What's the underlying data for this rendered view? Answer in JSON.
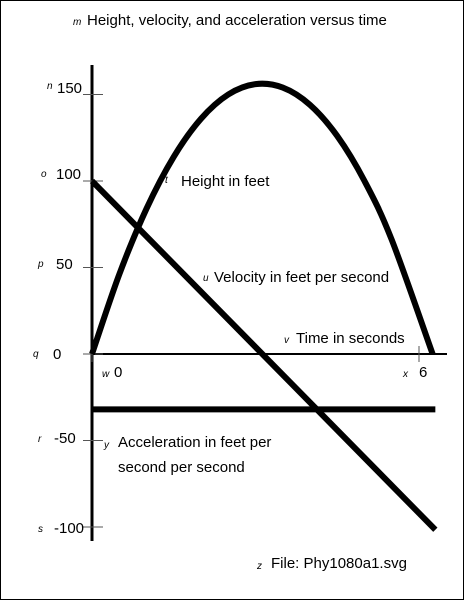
{
  "chart_data": {
    "type": "line",
    "title": "Height, velocity, and acceleration versus time",
    "xlabel": "Time in seconds",
    "ylabel": "",
    "xlim": [
      0,
      6.3
    ],
    "ylim": [
      -100,
      170
    ],
    "x_ticks": [
      0,
      6
    ],
    "y_ticks": [
      150,
      100,
      50,
      0,
      -50,
      -100
    ],
    "series": [
      {
        "name": "Height in feet",
        "x": [
          0,
          0.5,
          1,
          1.5,
          2,
          2.5,
          3,
          3.5,
          4,
          4.5,
          5,
          5.5,
          6.25
        ],
        "values": [
          0,
          46,
          84,
          114,
          136,
          150,
          156,
          154,
          144,
          126,
          100,
          66,
          0
        ]
      },
      {
        "name": "Velocity in feet per second",
        "x": [
          0,
          6.3
        ],
        "values": [
          100,
          -101.6
        ]
      },
      {
        "name": "Acceleration in feet per second per second",
        "x": [
          0,
          6.3
        ],
        "values": [
          -32,
          -32
        ]
      }
    ],
    "grid": false,
    "legend": "none"
  },
  "labels": {
    "title": "Height, velocity, and acceleration versus time",
    "height": "Height in feet",
    "velocity": "Velocity in feet per second",
    "time": "Time in seconds",
    "accel_line1": "Acceleration in feet per",
    "accel_line2": "second per second",
    "file": "File: Phy1080a1.svg"
  },
  "annotations": {
    "title": "m",
    "y150": "n",
    "y100": "o",
    "y50": "p",
    "y0": "q",
    "yneg50": "r",
    "yneg100": "s",
    "height": "t",
    "velocity": "u",
    "time": "v",
    "x0": "w",
    "x6": "x",
    "accel": "y",
    "file": "z"
  }
}
